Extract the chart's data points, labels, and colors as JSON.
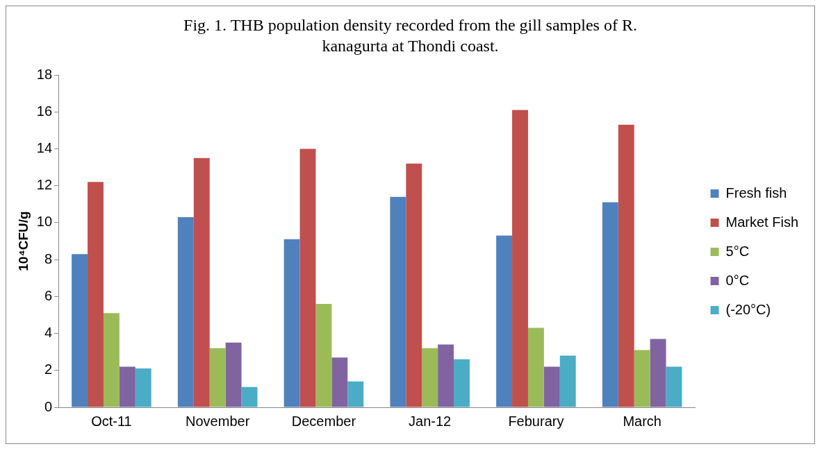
{
  "chart_data": {
    "type": "bar",
    "title": "Fig. 1. THB population density recorded from the gill samples of R. kanagurta at  Thondi coast.",
    "ylabel": "10⁴CFU/g",
    "categories": [
      "Oct-11",
      "November",
      "December",
      "Jan-12",
      "Feburary",
      "March"
    ],
    "series": [
      {
        "name": "Fresh fish",
        "color": "#4f81bd",
        "values": [
          8.3,
          10.3,
          9.1,
          11.4,
          9.3,
          11.1
        ]
      },
      {
        "name": "Market Fish",
        "color": "#c0504d",
        "values": [
          12.2,
          13.5,
          14.0,
          13.2,
          16.1,
          15.3
        ]
      },
      {
        "name": "5°C",
        "color": "#9bbb59",
        "values": [
          5.1,
          3.2,
          5.6,
          3.2,
          4.3,
          3.1
        ]
      },
      {
        "name": "0°C",
        "color": "#8064a2",
        "values": [
          2.2,
          3.5,
          2.7,
          3.4,
          2.2,
          3.7
        ]
      },
      {
        "name": "(-20°C)",
        "color": "#4bacc6",
        "values": [
          2.1,
          1.1,
          1.4,
          2.6,
          2.8,
          2.2
        ]
      }
    ],
    "ylim": [
      0,
      18
    ],
    "yticks": [
      0,
      2,
      4,
      6,
      8,
      10,
      12,
      14,
      16,
      18
    ],
    "grid": false,
    "legend": "right"
  }
}
